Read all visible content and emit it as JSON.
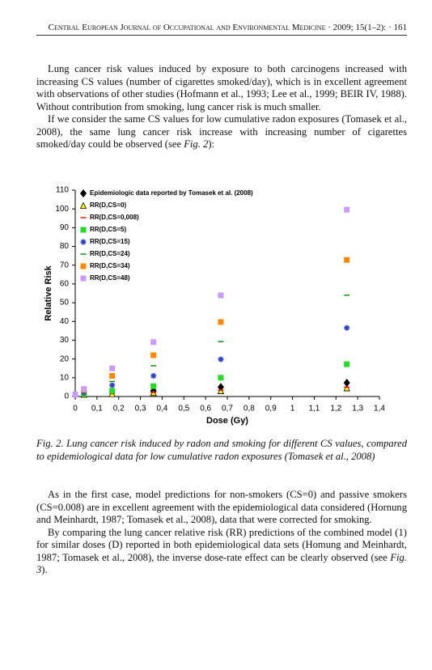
{
  "header": {
    "title": "Central European Journal of Occupational and Environmental Medicine · 2009; 15(1–2): · 161"
  },
  "paragraphs_before": [
    [
      "Lung cancer risk values induced by exposure to both carcinogens increased with increasing CS values (number of cigarettes smoked/day), which is in excellent agreement with observations of other studies (Hofmann et al., 1993; Lee et al., 1999; BEIR IV, 1988). Without contribution from smoking, lung cancer risk is much smaller."
    ],
    [
      "If we consider the same CS values for low cumulative radon exposures (Tomasek et al., 2008), the same lung cancer risk increase with increasing number of cigarettes smoked/day could be observed (see ",
      "Fig. 2",
      "):"
    ]
  ],
  "chart_data": {
    "type": "scatter",
    "xlabel": "Dose (Gy)",
    "ylabel": "Relative Risk",
    "xlim": [
      0,
      1.4
    ],
    "ylim": [
      0,
      110
    ],
    "xticks": [
      0,
      {
        "value": 0.1,
        "label": "0,1"
      },
      {
        "value": 0.2,
        "label": "0,2"
      },
      {
        "value": 0.3,
        "label": "0,3"
      },
      {
        "value": 0.4,
        "label": "0,4"
      },
      {
        "value": 0.5,
        "label": "0,5"
      },
      {
        "value": 0.6,
        "label": "0,6"
      },
      {
        "value": 0.7,
        "label": "0,7"
      },
      {
        "value": 0.8,
        "label": "0,8"
      },
      {
        "value": 0.9,
        "label": "0,9"
      },
      1,
      {
        "value": 1.1,
        "label": "1,1"
      },
      {
        "value": 1.2,
        "label": "1,2"
      },
      {
        "value": 1.3,
        "label": "1,3"
      },
      {
        "value": 1.4,
        "label": "1,4"
      }
    ],
    "yticks": [
      0,
      10,
      20,
      30,
      40,
      50,
      60,
      70,
      80,
      90,
      100,
      110
    ],
    "grid": false,
    "legend": "upper left",
    "series": [
      {
        "name": "Epidemiologic data reported by Tomasek et al. (2008)",
        "marker": "diamond",
        "color": "#000000",
        "x": [
          0.36,
          0.67,
          1.25
        ],
        "values": [
          3,
          5,
          7.3
        ]
      },
      {
        "name": "RR(D,CS=0)",
        "marker": "triangle",
        "color": "#ffff00",
        "x": [
          0.04,
          0.17,
          0.36,
          0.67,
          1.25
        ],
        "values": [
          1.1,
          1.4,
          2,
          3,
          4.5
        ]
      },
      {
        "name": "RR(D,CS=0,008)",
        "marker": "dash",
        "color": "#ff0000",
        "x": [
          0.04,
          0.17,
          0.36,
          0.67,
          1.25
        ],
        "values": [
          1.1,
          1.5,
          2.2,
          3.4,
          5
        ]
      },
      {
        "name": "RR(D,CS=5)",
        "marker": "square",
        "color": "#22dd22",
        "x": [
          0.04,
          0.17,
          0.36,
          0.67,
          1.25
        ],
        "values": [
          1.5,
          3,
          5.5,
          10,
          17.2
        ]
      },
      {
        "name": "RR(D,CS=15)",
        "marker": "star",
        "color": "#3344cc",
        "x": [
          0.04,
          0.17,
          0.36,
          0.67,
          1.25
        ],
        "values": [
          2,
          6,
          11,
          19.8,
          36.6
        ]
      },
      {
        "name": "RR(D,CS=24)",
        "marker": "dash",
        "color": "#008800",
        "x": [
          0.04,
          0.17,
          0.36,
          0.67,
          1.25
        ],
        "values": [
          2.8,
          8,
          16.4,
          29.3,
          54
        ]
      },
      {
        "name": "RR(D,CS=34)",
        "marker": "square",
        "color": "#ff8800",
        "x": [
          0.04,
          0.17,
          0.36,
          0.67,
          1.25
        ],
        "values": [
          3.5,
          11,
          22,
          39.7,
          72.8
        ]
      },
      {
        "name": "RR(D,CS=48)",
        "marker": "square",
        "color": "#cc99ff",
        "x": [
          0,
          0.04,
          0.17,
          0.36,
          0.67,
          1.25
        ],
        "values": [
          1,
          4,
          15,
          29,
          53.9,
          99.6
        ]
      }
    ]
  },
  "caption": "Fig. 2. Lung cancer risk induced by radon and smoking for different CS values, compared to epidemiological data for low cumulative radon exposures (Tomasek et al., 2008)",
  "paragraphs_after": [
    [
      "As in the first case, model predictions for non-smokers (CS=0) and passive smokers (CS=0.008) are in excellent agreement with the epidemiological data considered (Hornung and Meinhardt, 1987; Tomasek et al., 2008), data that were corrected for smoking."
    ],
    [
      "By comparing the lung cancer relative risk (RR) predictions of the combined model (1) for similar doses (D) reported in both epidemiological data sets (Homung and Meinhardt, 1987; Tomasek et al., 2008), the inverse dose-rate effect can be clearly observed (see ",
      "Fig. 3",
      ")."
    ]
  ]
}
